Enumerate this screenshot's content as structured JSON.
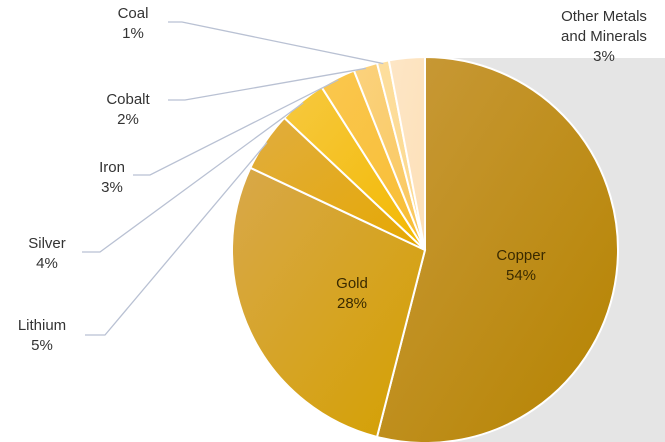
{
  "chart_data": {
    "type": "pie",
    "title": "",
    "slices": [
      {
        "name": "Copper",
        "value": 54,
        "label": "54%",
        "color_start": "#c99a3a",
        "color_end": "#b58300"
      },
      {
        "name": "Gold",
        "value": 28,
        "label": "28%",
        "color_start": "#d8a84a",
        "color_end": "#d4a000"
      },
      {
        "name": "Lithium",
        "value": 5,
        "label": "5%",
        "color_start": "#e0ad40",
        "color_end": "#e6a800"
      },
      {
        "name": "Silver",
        "value": 4,
        "label": "4%",
        "color_start": "#f6c940",
        "color_end": "#f3b800"
      },
      {
        "name": "Iron",
        "value": 3,
        "label": "3%",
        "color_start": "#fac74e",
        "color_end": "#f8bd34"
      },
      {
        "name": "Cobalt",
        "value": 2,
        "label": "2%",
        "color_start": "#fbd27e",
        "color_end": "#f9c75c"
      },
      {
        "name": "Coal",
        "value": 1,
        "label": "1%",
        "color_start": "#fddf9e",
        "color_end": "#fcd88e"
      },
      {
        "name": "Other Metals and Minerals",
        "value": 3,
        "label": "3%",
        "color_start": "#fde6c6",
        "color_end": "#fde0b8"
      }
    ],
    "start_angle": "12 o'clock",
    "direction": "clockwise",
    "label_style": "inside for large slices, outside with leader lines for small slices"
  },
  "colors": {
    "leader_line": "#b9c1d3",
    "background_panel": "#e5e5e5",
    "slice_border": "#ffffff"
  }
}
